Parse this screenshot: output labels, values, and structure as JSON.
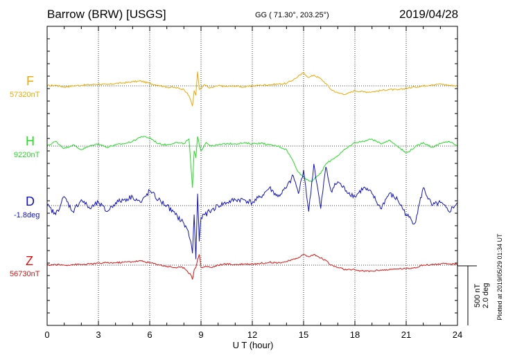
{
  "header": {
    "station": "Barrow (BRW)  [USGS]",
    "coords": "GG ( 71.30°, 203.25°)",
    "date": "2019/04/28"
  },
  "scale_note": {
    "nt": "500 nT",
    "deg": "2.0 deg"
  },
  "plotted_note": "Plotted at 2019/05/29 01:34 UT",
  "colors": {
    "F": "#f0a800",
    "H": "#22dd22",
    "D": "#1010cc",
    "Z": "#dd1111"
  },
  "chart_data": {
    "type": "line",
    "title": "Barrow (BRW)  [USGS]",
    "xlabel": "U T (hour)",
    "xlim": [
      0,
      24
    ],
    "xticks": [
      0,
      3,
      6,
      9,
      12,
      15,
      18,
      21,
      24
    ],
    "grid": true,
    "scale": {
      "nT_per_bar": 500,
      "deg_per_bar": 2.0
    },
    "series": [
      {
        "name": "F",
        "baseline_label": "57320nT",
        "unit": "nT",
        "color": "#f0a800",
        "x": [
          0,
          0.5,
          1,
          1.5,
          2,
          2.5,
          3,
          3.5,
          4,
          4.5,
          5,
          5.5,
          6,
          6.5,
          7,
          7.5,
          8,
          8.2,
          8.4,
          8.5,
          8.6,
          8.7,
          8.8,
          8.9,
          9,
          9.2,
          9.5,
          10,
          10.5,
          11,
          11.5,
          12,
          12.5,
          13,
          13.5,
          14,
          14.5,
          15,
          15.3,
          15.6,
          16,
          16.3,
          16.6,
          17,
          17.5,
          18,
          18.5,
          19,
          19.5,
          20,
          20.5,
          21,
          21.5,
          22,
          22.5,
          23,
          23.5,
          24
        ],
        "y": [
          0,
          5,
          -10,
          0,
          5,
          10,
          15,
          10,
          20,
          25,
          35,
          40,
          20,
          5,
          -10,
          -15,
          -30,
          -60,
          -120,
          -170,
          -40,
          -80,
          120,
          -30,
          -20,
          10,
          -20,
          0,
          -5,
          0,
          -10,
          0,
          5,
          10,
          15,
          20,
          60,
          110,
          70,
          90,
          60,
          20,
          -30,
          -60,
          -70,
          -40,
          -50,
          -50,
          -40,
          -30,
          -35,
          -20,
          -10,
          0,
          10,
          15,
          5,
          0
        ]
      },
      {
        "name": "H",
        "baseline_label": "9220nT",
        "unit": "nT",
        "color": "#22dd22",
        "x": [
          0,
          0.5,
          1,
          1.5,
          2,
          2.5,
          3,
          3.5,
          4,
          4.5,
          5,
          5.5,
          6,
          6.5,
          7,
          7.5,
          8,
          8.3,
          8.4,
          8.5,
          8.6,
          8.7,
          8.8,
          9,
          9.3,
          9.6,
          10,
          10.5,
          11,
          11.5,
          12,
          12.5,
          13,
          13.5,
          14,
          14.4,
          14.7,
          15,
          15.2,
          15.5,
          15.8,
          16,
          16.3,
          16.6,
          17,
          17.5,
          18,
          18.5,
          19,
          19.5,
          20,
          20.5,
          21,
          21.5,
          22,
          22.5,
          23,
          23.5,
          24
        ],
        "y": [
          0,
          40,
          -20,
          10,
          -30,
          0,
          20,
          -10,
          10,
          20,
          40,
          80,
          70,
          20,
          10,
          30,
          20,
          60,
          -150,
          -350,
          -40,
          -100,
          80,
          -40,
          30,
          0,
          10,
          20,
          20,
          25,
          20,
          25,
          10,
          0,
          -30,
          -130,
          -220,
          -260,
          -280,
          -300,
          -250,
          -230,
          -150,
          -120,
          -80,
          -20,
          30,
          40,
          60,
          20,
          50,
          0,
          -60,
          -10,
          30,
          -10,
          20,
          40,
          0
        ]
      },
      {
        "name": "D",
        "baseline_label": "-1.8deg",
        "unit": "deg",
        "color": "#1010cc",
        "x": [
          0,
          0.5,
          1,
          1.5,
          2,
          2.5,
          3,
          3.5,
          4,
          4.5,
          5,
          5.5,
          6,
          6.5,
          7,
          7.5,
          8,
          8.2,
          8.4,
          8.5,
          8.6,
          8.7,
          8.8,
          8.9,
          9,
          9.5,
          10,
          10.5,
          11,
          11.5,
          12,
          12.5,
          13,
          13.5,
          14,
          14.4,
          14.7,
          15,
          15.3,
          15.6,
          16,
          16.3,
          16.6,
          17,
          17.5,
          18,
          18.5,
          19,
          19.5,
          20,
          20.5,
          21,
          21.5,
          22,
          22.5,
          23,
          23.5,
          24
        ],
        "y": [
          0,
          -0.3,
          0.3,
          -0.2,
          0.2,
          -0.1,
          0.1,
          -0.2,
          0.1,
          0.2,
          0.3,
          0.1,
          0.5,
          0.2,
          0,
          -0.3,
          -0.6,
          -0.8,
          -1.2,
          -1.6,
          -0.3,
          -1.8,
          0.4,
          -1.2,
          -0.4,
          -0.2,
          0,
          0.1,
          0.2,
          0.2,
          0.1,
          0.3,
          0.6,
          0.3,
          0.6,
          1.0,
          0.4,
          1.2,
          -0.2,
          1.4,
          -0.1,
          1.3,
          0.5,
          0.8,
          0.5,
          0.3,
          0.6,
          0.4,
          -0.1,
          0.4,
          0.2,
          -0.3,
          -0.6,
          0.6,
          0,
          0.1,
          -0.2,
          0.1
        ]
      },
      {
        "name": "Z",
        "baseline_label": "56730nT",
        "unit": "nT",
        "color": "#dd1111",
        "x": [
          0,
          0.5,
          1,
          1.5,
          2,
          2.5,
          3,
          3.5,
          4,
          4.5,
          5,
          5.5,
          6,
          6.5,
          7,
          7.5,
          8,
          8.2,
          8.4,
          8.5,
          8.6,
          8.7,
          8.8,
          8.9,
          9,
          9.3,
          9.6,
          10,
          10.5,
          11,
          11.5,
          12,
          12.5,
          13,
          13.5,
          14,
          14.5,
          15,
          15.3,
          15.6,
          16,
          16.3,
          16.6,
          17,
          17.5,
          18,
          18.5,
          19,
          19.5,
          20,
          20.5,
          21,
          21.5,
          22,
          22.5,
          23,
          23.5,
          24
        ],
        "y": [
          0,
          5,
          0,
          5,
          5,
          10,
          15,
          20,
          20,
          25,
          30,
          35,
          20,
          5,
          -10,
          -20,
          -20,
          -50,
          -80,
          -120,
          -40,
          -20,
          50,
          90,
          -20,
          -10,
          -20,
          0,
          10,
          5,
          10,
          10,
          15,
          25,
          20,
          30,
          50,
          90,
          70,
          90,
          60,
          40,
          0,
          -20,
          -40,
          -40,
          -50,
          -50,
          -40,
          -40,
          -30,
          -30,
          -20,
          0,
          5,
          10,
          10,
          5
        ]
      }
    ]
  }
}
